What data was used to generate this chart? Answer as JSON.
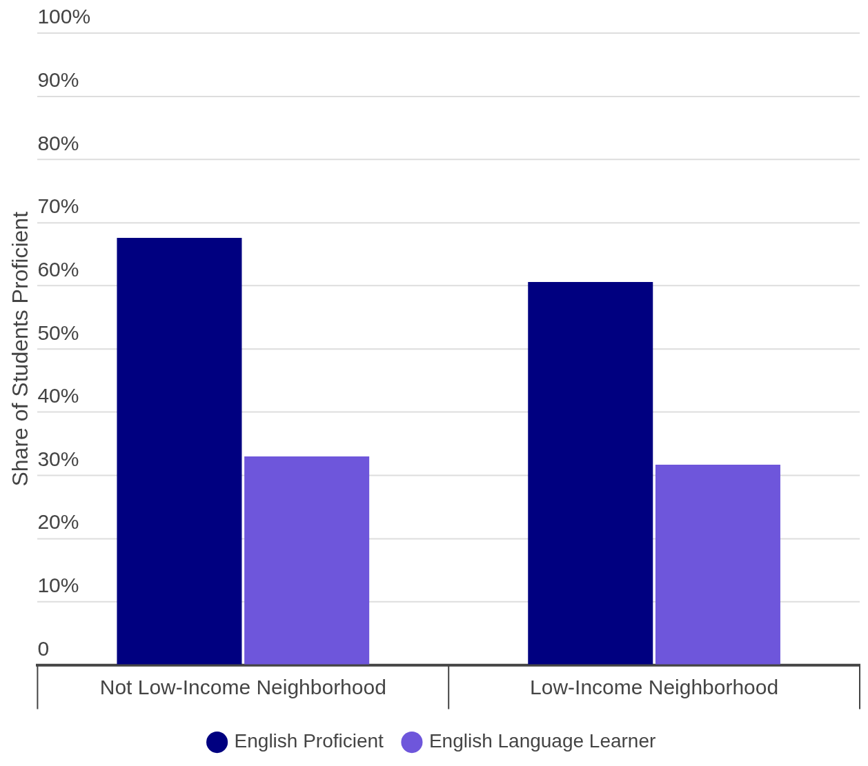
{
  "chart_data": {
    "type": "bar",
    "ylabel": "Share of Students Proficient",
    "categories": [
      "Not Low-Income Neighborhood",
      "Low-Income Neighborhood"
    ],
    "series": [
      {
        "name": "English Proficient",
        "color": "#000080",
        "values": [
          67.6,
          60.6
        ]
      },
      {
        "name": "English Language Learner",
        "color": "#6e56db",
        "values": [
          33.0,
          31.7
        ]
      }
    ],
    "ylim": [
      0,
      100
    ],
    "yticks": [
      {
        "value": 0,
        "label": "0"
      },
      {
        "value": 10,
        "label": "10%"
      },
      {
        "value": 20,
        "label": "20%"
      },
      {
        "value": 30,
        "label": "30%"
      },
      {
        "value": 40,
        "label": "40%"
      },
      {
        "value": 50,
        "label": "50%"
      },
      {
        "value": 60,
        "label": "60%"
      },
      {
        "value": 70,
        "label": "70%"
      },
      {
        "value": 80,
        "label": "80%"
      },
      {
        "value": 90,
        "label": "90%"
      },
      {
        "value": 100,
        "label": "100%"
      }
    ],
    "grid": "y",
    "legend": "bottom"
  }
}
